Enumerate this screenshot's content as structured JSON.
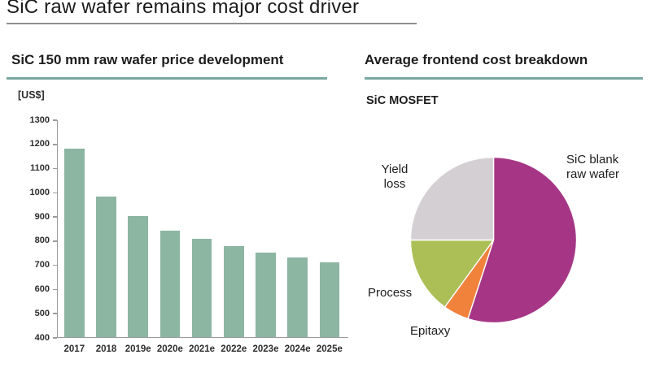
{
  "page": {
    "title": "SiC raw wafer remains major cost driver"
  },
  "left_panel": {
    "header": "SiC 150 mm raw wafer price development",
    "y_axis_unit": "[US$]"
  },
  "right_panel": {
    "header": "Average frontend cost breakdown",
    "subtitle": "SiC MOSFET"
  },
  "colors": {
    "bar": "#8cb5a2",
    "axis": "#9b9b9b",
    "header_underline": "#79a8a1",
    "title_underline": "#8f8f8f"
  },
  "chart_data": [
    {
      "type": "bar",
      "title": "SiC 150 mm raw wafer price development",
      "ylabel": "[US$]",
      "xlabel": "",
      "categories": [
        "2017",
        "2018",
        "2019e",
        "2020e",
        "2021e",
        "2022e",
        "2023e",
        "2024e",
        "2025e"
      ],
      "values": [
        1180,
        980,
        900,
        840,
        805,
        775,
        750,
        730,
        710
      ],
      "ylim": [
        400,
        1300
      ],
      "ytick_step": 100,
      "bar_color": "#8cb5a2",
      "grid": false,
      "legend": false
    },
    {
      "type": "pie",
      "title": "Average frontend cost breakdown",
      "subtitle": "SiC MOSFET",
      "start_angle": "top",
      "direction": "clockwise",
      "slices": [
        {
          "label": "SiC blank raw wafer",
          "value": 55,
          "color": "#a63685"
        },
        {
          "label": "Epitaxy",
          "value": 5,
          "color": "#f0823c"
        },
        {
          "label": "Process",
          "value": 15,
          "color": "#abbf56"
        },
        {
          "label": "Yield loss",
          "value": 25,
          "color": "#d3cfd3"
        }
      ]
    }
  ]
}
